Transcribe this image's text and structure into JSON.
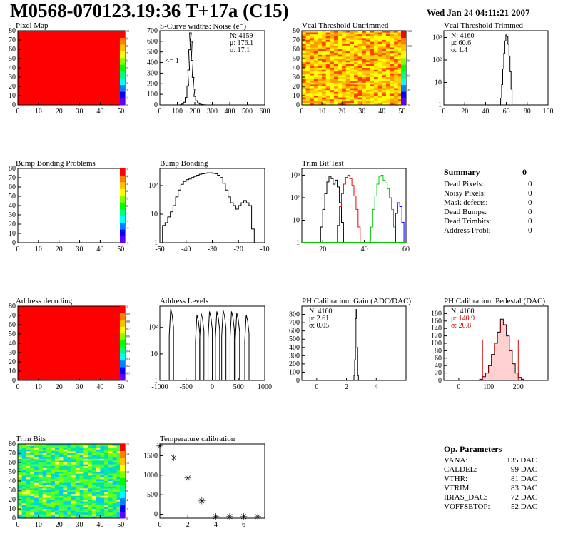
{
  "header": {
    "title": "M0568-070123.19:36 T+17a (C15)",
    "date": "Wed Jan 24 04:11:21 2007"
  },
  "panels": {
    "pixel_map": {
      "title": "Pixel Map"
    },
    "scurve": {
      "title": "S-Curve widths: Noise (e⁻)",
      "stats": [
        "N: 4159",
        "μ: 176.1",
        "σ: 17.1"
      ],
      "annot": "<= 1"
    },
    "vcal_untrimmed": {
      "title": "Vcal Threshold Untrimmed"
    },
    "vcal_trimmed": {
      "title": "Vcal Threshold Trimmed",
      "stats": [
        "N: 4160",
        "μ: 60.6",
        "σ:  1.4"
      ]
    },
    "bump_problems": {
      "title": "Bump Bonding Problems"
    },
    "bump_bonding": {
      "title": "Bump Bonding"
    },
    "trim_bit_test": {
      "title": "Trim Bit Test"
    },
    "address_decoding": {
      "title": "Address decoding"
    },
    "address_levels": {
      "title": "Address Levels"
    },
    "ph_gain": {
      "title": "PH Calibration: Gain (ADC/DAC)",
      "stats": [
        "N: 4160",
        "μ: 2.61",
        "σ: 0.05"
      ]
    },
    "ph_pedestal": {
      "title": "PH Calibration: Pedestal (DAC)",
      "stats": [
        "N: 4160",
        "μ: 140.9",
        "σ: 20.8"
      ]
    },
    "trim_bits": {
      "title": "Trim Bits"
    },
    "temperature": {
      "title": "Temperature calibration"
    }
  },
  "summary": {
    "title": "Summary",
    "total": "0",
    "rows": [
      {
        "label": "Dead Pixels:",
        "value": "0"
      },
      {
        "label": "Noisy Pixels:",
        "value": "0"
      },
      {
        "label": "Mask defects:",
        "value": "0"
      },
      {
        "label": "Dead Bumps:",
        "value": "0"
      },
      {
        "label": "Dead Trimbits:",
        "value": "0"
      },
      {
        "label": "Address Probl:",
        "value": "0"
      }
    ]
  },
  "op_parameters": {
    "title": "Op. Parameters",
    "rows": [
      {
        "label": "VANA:",
        "value": "135 DAC"
      },
      {
        "label": "CALDEL:",
        "value": "99 DAC"
      },
      {
        "label": "VTHR:",
        "value": "81 DAC"
      },
      {
        "label": "VTRIM:",
        "value": "83 DAC"
      },
      {
        "label": "IBIAS_DAC:",
        "value": "72 DAC"
      },
      {
        "label": "VOFFSETOP:",
        "value": "52 DAC"
      }
    ]
  },
  "colors": {
    "red": "#ff0000",
    "green": "#00c800",
    "blue": "#0000ff",
    "text_red": "#d00000"
  },
  "chart_data": [
    {
      "type": "heatmap",
      "name": "pixel_map",
      "xlim": [
        0,
        52
      ],
      "ylim": [
        0,
        80
      ],
      "xticks": [
        0,
        10,
        20,
        30,
        40,
        50
      ],
      "yticks": [
        0,
        10,
        20,
        30,
        40,
        50,
        60,
        70,
        80
      ],
      "fill": "uniform red (all pixels at max)",
      "zticks": [
        "0",
        "1",
        "2",
        "3",
        "4",
        "5",
        "6",
        "7",
        "8",
        "9",
        "10"
      ]
    },
    {
      "type": "bar",
      "name": "scurve",
      "xlim": [
        0,
        600
      ],
      "ylim": [
        0,
        700
      ],
      "xticks": [
        0,
        100,
        200,
        300,
        400,
        500,
        600
      ],
      "yticks": [
        0,
        100,
        200,
        300,
        400,
        500,
        600,
        700
      ],
      "x": [
        120,
        130,
        140,
        150,
        160,
        165,
        170,
        175,
        180,
        185,
        190,
        195,
        200,
        210,
        220,
        230,
        240,
        250,
        260
      ],
      "values": [
        2,
        8,
        25,
        70,
        180,
        330,
        520,
        680,
        600,
        420,
        260,
        150,
        80,
        40,
        18,
        8,
        4,
        2,
        1
      ]
    },
    {
      "type": "heatmap",
      "name": "vcal_untrimmed",
      "xlim": [
        0,
        52
      ],
      "ylim": [
        0,
        80
      ],
      "xticks": [
        0,
        10,
        20,
        30,
        40,
        50
      ],
      "yticks": [
        0,
        10,
        20,
        30,
        40,
        50,
        60,
        70,
        80
      ],
      "zticks": [
        "20",
        "40",
        "60",
        "80",
        "100",
        "120"
      ],
      "fill": "yellow/orange/red noise"
    },
    {
      "type": "bar",
      "name": "vcal_trimmed",
      "log_y": true,
      "xlim": [
        0,
        100
      ],
      "xticks": [
        0,
        20,
        40,
        60,
        80,
        100
      ],
      "yticks": [
        "1",
        "10",
        "10²",
        "10³"
      ],
      "x": [
        55,
        56,
        57,
        58,
        59,
        60,
        61,
        62,
        63,
        64,
        65,
        66
      ],
      "values": [
        2,
        8,
        40,
        200,
        700,
        1300,
        1100,
        500,
        150,
        30,
        5,
        1
      ]
    },
    {
      "type": "heatmap",
      "name": "bump_problems",
      "xlim": [
        0,
        52
      ],
      "ylim": [
        0,
        80
      ],
      "xticks": [
        0,
        10,
        20,
        30,
        40,
        50
      ],
      "yticks": [
        0,
        10,
        20,
        30,
        40,
        50,
        60,
        70,
        80
      ],
      "zticks": [
        "-5",
        "-4",
        "-3",
        "-2",
        "-1",
        "0",
        "1",
        "2",
        "3",
        "4",
        "5"
      ],
      "fill": "empty"
    },
    {
      "type": "bar",
      "name": "bump_bonding",
      "log_y": true,
      "xlim": [
        -50,
        -10
      ],
      "xticks": [
        -50,
        -40,
        -30,
        -20,
        -10
      ],
      "yticks": [
        "1",
        "10",
        "10²"
      ],
      "x": [
        -50,
        -49,
        -48,
        -47,
        -46,
        -45,
        -44,
        -43,
        -42,
        -41,
        -40,
        -39,
        -38,
        -37,
        -36,
        -35,
        -34,
        -33,
        -32,
        -31,
        -30,
        -29,
        -28,
        -27,
        -26,
        -25,
        -24,
        -23,
        -22,
        -21,
        -20,
        -19,
        -18,
        -17,
        -16,
        -15,
        -14
      ],
      "values": [
        1,
        4,
        5,
        8,
        12,
        20,
        40,
        70,
        110,
        140,
        160,
        170,
        190,
        210,
        230,
        250,
        260,
        270,
        280,
        280,
        270,
        260,
        230,
        190,
        120,
        70,
        40,
        25,
        20,
        15,
        20,
        25,
        30,
        25,
        20,
        3,
        1
      ]
    },
    {
      "type": "line",
      "name": "trim_bit_test",
      "log_y": true,
      "xlim": [
        10,
        60
      ],
      "xticks": [
        20,
        40,
        60
      ],
      "yticks": [
        "1",
        "10",
        "10²",
        "10³"
      ],
      "series": [
        {
          "color": "black",
          "x": [
            18,
            19,
            20,
            21,
            22,
            23,
            24,
            25,
            26,
            27,
            28,
            29,
            30
          ],
          "values": [
            1,
            5,
            30,
            150,
            500,
            900,
            700,
            400,
            600,
            300,
            60,
            8,
            1
          ]
        },
        {
          "color": "red",
          "x": [
            26,
            27,
            28,
            29,
            30,
            31,
            32,
            33,
            34,
            35,
            36,
            37,
            38
          ],
          "values": [
            1,
            6,
            40,
            150,
            400,
            800,
            1000,
            700,
            350,
            120,
            30,
            5,
            1
          ]
        },
        {
          "color": "green",
          "x": [
            42,
            43,
            44,
            45,
            46,
            47,
            48,
            49,
            50,
            51,
            52,
            53,
            54,
            55
          ],
          "values": [
            1,
            5,
            30,
            120,
            400,
            900,
            1000,
            600,
            450,
            250,
            100,
            30,
            5,
            1
          ]
        },
        {
          "color": "blue",
          "x": [
            54,
            55,
            56,
            57,
            58,
            59
          ],
          "values": [
            1,
            20,
            60,
            40,
            8,
            1
          ]
        }
      ]
    },
    {
      "type": "heatmap",
      "name": "address_decoding",
      "xlim": [
        0,
        52
      ],
      "ylim": [
        0,
        80
      ],
      "xticks": [
        0,
        10,
        20,
        30,
        40,
        50
      ],
      "yticks": [
        0,
        10,
        20,
        30,
        40,
        50,
        60,
        70,
        80
      ],
      "zticks": [
        "0",
        "0.1",
        "0.2",
        "0.3",
        "0.4",
        "0.5",
        "0.6",
        "0.7",
        "0.8",
        "0.9",
        "1"
      ],
      "fill": "uniform red"
    },
    {
      "type": "bar",
      "name": "address_levels",
      "log_y": true,
      "xlim": [
        -1000,
        1000
      ],
      "xticks": [
        -1000,
        -500,
        0,
        500,
        1000
      ],
      "yticks": [
        "1",
        "10",
        "10²"
      ],
      "peaks": [
        -780,
        -280,
        -200,
        -40,
        100,
        220,
        380,
        480,
        660
      ],
      "peak_heights": [
        500,
        300,
        350,
        400,
        400,
        450,
        400,
        350,
        300
      ]
    },
    {
      "type": "bar",
      "name": "ph_gain",
      "xlim": [
        -1,
        6
      ],
      "ylim": [
        0,
        900
      ],
      "xticks": [
        0,
        2,
        4
      ],
      "yticks": [
        0,
        100,
        200,
        300,
        400,
        500,
        600,
        700,
        800
      ],
      "x": [
        2.45,
        2.5,
        2.55,
        2.6,
        2.65,
        2.7,
        2.75,
        2.8
      ],
      "values": [
        5,
        60,
        250,
        750,
        860,
        400,
        60,
        5
      ]
    },
    {
      "type": "bar",
      "name": "ph_pedestal",
      "xlim": [
        -50,
        300
      ],
      "ylim": [
        0,
        200
      ],
      "xticks": [
        0,
        100,
        200
      ],
      "yticks": [
        0,
        20,
        40,
        60,
        80,
        100,
        120,
        140,
        160,
        180
      ],
      "x": [
        60,
        70,
        80,
        90,
        100,
        110,
        120,
        130,
        140,
        150,
        160,
        170,
        180,
        190,
        200,
        210,
        220
      ],
      "values": [
        1,
        3,
        10,
        20,
        40,
        70,
        100,
        130,
        165,
        150,
        120,
        80,
        45,
        20,
        8,
        3,
        1
      ],
      "cut_lines": [
        80,
        200
      ]
    },
    {
      "type": "heatmap",
      "name": "trim_bits",
      "xlim": [
        0,
        52
      ],
      "ylim": [
        0,
        80
      ],
      "xticks": [
        0,
        10,
        20,
        30,
        40,
        50
      ],
      "yticks": [
        0,
        10,
        20,
        30,
        40,
        50,
        60,
        70,
        80
      ],
      "zticks": [
        "0",
        "2",
        "4",
        "6",
        "8",
        "10",
        "12",
        "14",
        "16"
      ],
      "fill": "green/cyan noise"
    },
    {
      "type": "scatter",
      "name": "temperature",
      "xlim": [
        0,
        7.5
      ],
      "ylim": [
        -100,
        1800
      ],
      "xticks": [
        0,
        2,
        4,
        6
      ],
      "yticks": [
        0,
        500,
        1000,
        1500
      ],
      "x": [
        0,
        1,
        2,
        3,
        4,
        5,
        6,
        7
      ],
      "values": [
        1750,
        1450,
        930,
        350,
        -50,
        -50,
        -50,
        -50
      ]
    }
  ]
}
